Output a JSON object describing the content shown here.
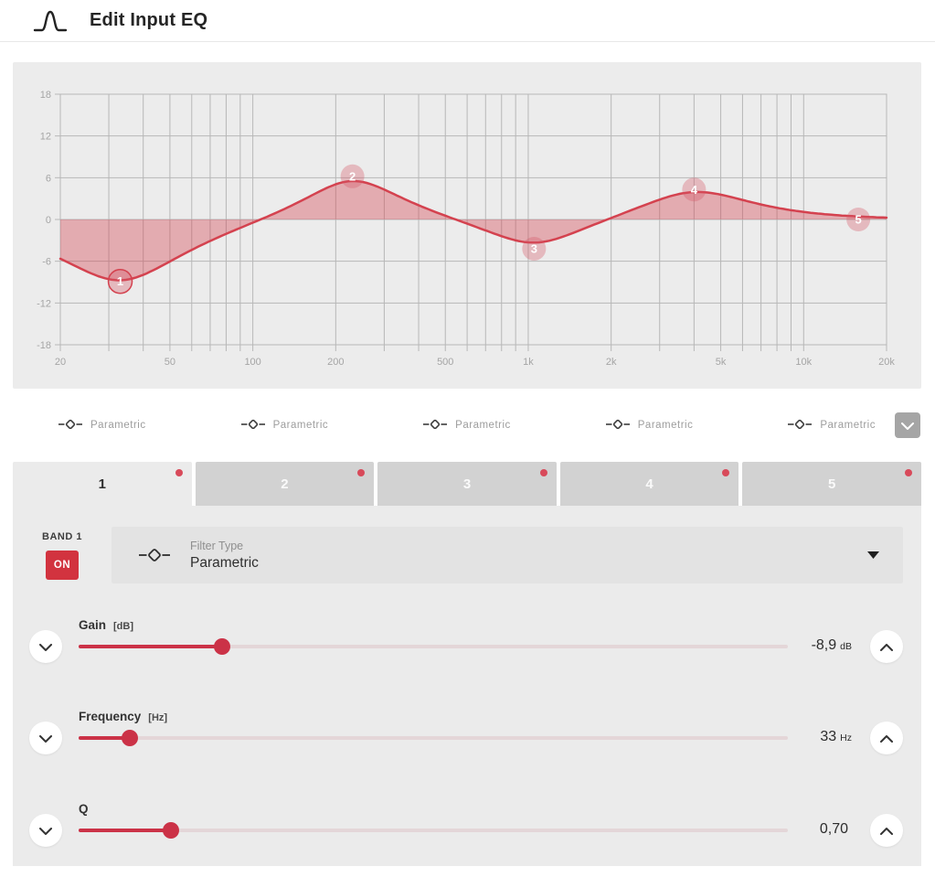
{
  "header": {
    "title": "Edit Input EQ"
  },
  "colors": {
    "accent": "#cb3247",
    "on_button": "#d2333f",
    "tab_dot": "#d84a5a",
    "tab_inactive": "#d2d2d2",
    "panel": "#ebebeb",
    "collapse_button": "#a5a5a5"
  },
  "filter_row": {
    "items": [
      {
        "label": "Parametric"
      },
      {
        "label": "Parametric"
      },
      {
        "label": "Parametric"
      },
      {
        "label": "Parametric"
      },
      {
        "label": "Parametric"
      }
    ]
  },
  "tabs": [
    {
      "label": "1",
      "active": true
    },
    {
      "label": "2",
      "active": false
    },
    {
      "label": "3",
      "active": false
    },
    {
      "label": "4",
      "active": false
    },
    {
      "label": "5",
      "active": false
    }
  ],
  "band_panel": {
    "band_label": "BAND 1",
    "on_label": "ON",
    "filter_type_label": "Filter Type",
    "filter_type_value": "Parametric",
    "sliders": [
      {
        "name": "Gain",
        "unit_bracket": "[dB]",
        "value": "-8,9",
        "unit": "dB",
        "percent": 20.2
      },
      {
        "name": "Frequency",
        "unit_bracket": "[Hz]",
        "value": "33",
        "unit": "Hz",
        "percent": 7.2
      },
      {
        "name": "Q",
        "unit_bracket": "",
        "value": "0,70",
        "unit": "",
        "percent": 13.0
      }
    ]
  },
  "chart_data": {
    "type": "line",
    "title": "EQ frequency response",
    "x_axis": {
      "scale": "log",
      "range": [
        20,
        20000
      ],
      "unit": "Hz",
      "tick_values": [
        20,
        50,
        100,
        200,
        500,
        1000,
        2000,
        5000,
        10000,
        20000
      ],
      "tick_labels": [
        "20",
        "50",
        "100",
        "200",
        "500",
        "1k",
        "2k",
        "5k",
        "10k",
        "20k"
      ]
    },
    "y_axis": {
      "range": [
        -18,
        18
      ],
      "unit": "dB",
      "tick_values": [
        18,
        12,
        6,
        0,
        -6,
        -12,
        -18
      ]
    },
    "grid": true,
    "bands": [
      {
        "num": "1",
        "freq": 33,
        "gain_db": -8.9,
        "q": 0.7,
        "selected": true
      },
      {
        "num": "2",
        "freq": 230,
        "gain_db": 6.2,
        "q": 0.9,
        "selected": false
      },
      {
        "num": "3",
        "freq": 1050,
        "gain_db": -4.2,
        "q": 0.9,
        "selected": false
      },
      {
        "num": "4",
        "freq": 4000,
        "gain_db": 4.3,
        "q": 0.8,
        "selected": false
      },
      {
        "num": "5",
        "freq": 15800,
        "gain_db": 0,
        "q": 0.7,
        "selected": false
      }
    ],
    "colors": {
      "curve": "#d4424f",
      "fill": "rgba(212,66,79,0.38)",
      "grid": "#b7b7b7",
      "label": "#a5a5a5",
      "badge": "rgba(214,88,102,0.34)",
      "badge_text": "#ffffff"
    }
  }
}
